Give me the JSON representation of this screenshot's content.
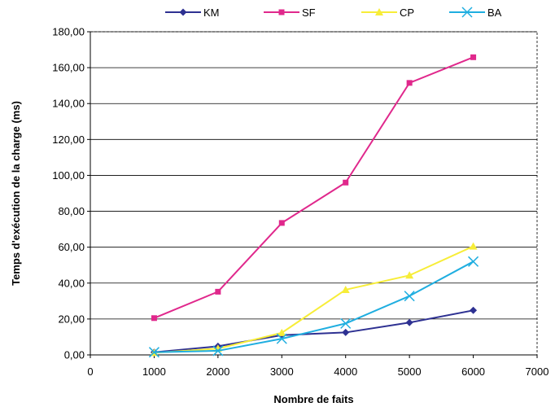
{
  "chart_data": {
    "type": "line",
    "xlabel": "Nombre de faits",
    "ylabel": "Temps d'exécution de la charge (ms)",
    "xlim": [
      0,
      7000
    ],
    "ylim": [
      0,
      180
    ],
    "x_ticks": [
      "0",
      "1000",
      "2000",
      "3000",
      "4000",
      "5000",
      "6000",
      "7000"
    ],
    "y_ticks": [
      "0,00",
      "20,00",
      "40,00",
      "60,00",
      "80,00",
      "100,00",
      "120,00",
      "140,00",
      "160,00",
      "180,00"
    ],
    "grid": "horizontal",
    "legend_position": "top",
    "x": [
      1000,
      2000,
      3000,
      4000,
      5000,
      6000
    ],
    "series": [
      {
        "name": "KM",
        "color": "#2e3192",
        "marker": "diamond",
        "values": [
          1.5,
          4.8,
          11.0,
          12.5,
          18.0,
          24.8
        ]
      },
      {
        "name": "SF",
        "color": "#e0288c",
        "marker": "square",
        "values": [
          20.5,
          35.2,
          73.5,
          96.0,
          151.5,
          165.8
        ]
      },
      {
        "name": "CP",
        "color": "#f7ed38",
        "marker": "triangle",
        "values": [
          1.2,
          3.5,
          12.3,
          36.3,
          44.3,
          60.5
        ]
      },
      {
        "name": "BA",
        "color": "#1faee0",
        "marker": "x",
        "values": [
          1.5,
          2.3,
          9.0,
          17.5,
          32.8,
          52.0
        ]
      }
    ]
  }
}
